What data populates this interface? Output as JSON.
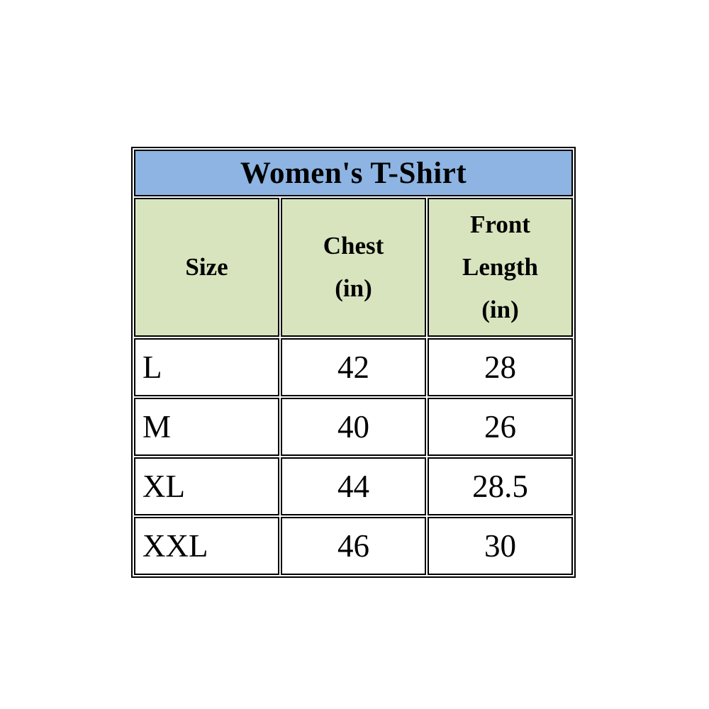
{
  "chart_data": {
    "type": "table",
    "title": "Women's T-Shirt",
    "columns": [
      "Size",
      "Chest (in)",
      "Front Length (in)"
    ],
    "rows": [
      [
        "L",
        42,
        28
      ],
      [
        "M",
        40,
        26
      ],
      [
        "XL",
        44,
        28.5
      ],
      [
        "XXL",
        46,
        30
      ]
    ],
    "layout_hints": {
      "title_row_spans_all_columns": true,
      "size_column_align": "left",
      "number_columns_align": "center",
      "grid": "on"
    }
  },
  "table": {
    "title": "Women's T-Shirt",
    "columns": [
      {
        "label": "Size",
        "lines": [
          "Size"
        ]
      },
      {
        "label": "Chest (in)",
        "lines": [
          "Chest",
          "(in)"
        ]
      },
      {
        "label": "Front Length (in)",
        "lines": [
          "Front",
          "Length",
          "(in)"
        ]
      }
    ],
    "rows": [
      {
        "size": "L",
        "chest": "42",
        "front_length": "28"
      },
      {
        "size": "M",
        "chest": "40",
        "front_length": "26"
      },
      {
        "size": "XL",
        "chest": "44",
        "front_length": "28.5"
      },
      {
        "size": "XXL",
        "chest": "46",
        "front_length": "30"
      }
    ],
    "colors": {
      "title_bg": "#8DB4E2",
      "header_bg": "#D8E4BE",
      "row_bg": "#FFFFFF",
      "border": "#000000",
      "text": "#000000"
    }
  }
}
